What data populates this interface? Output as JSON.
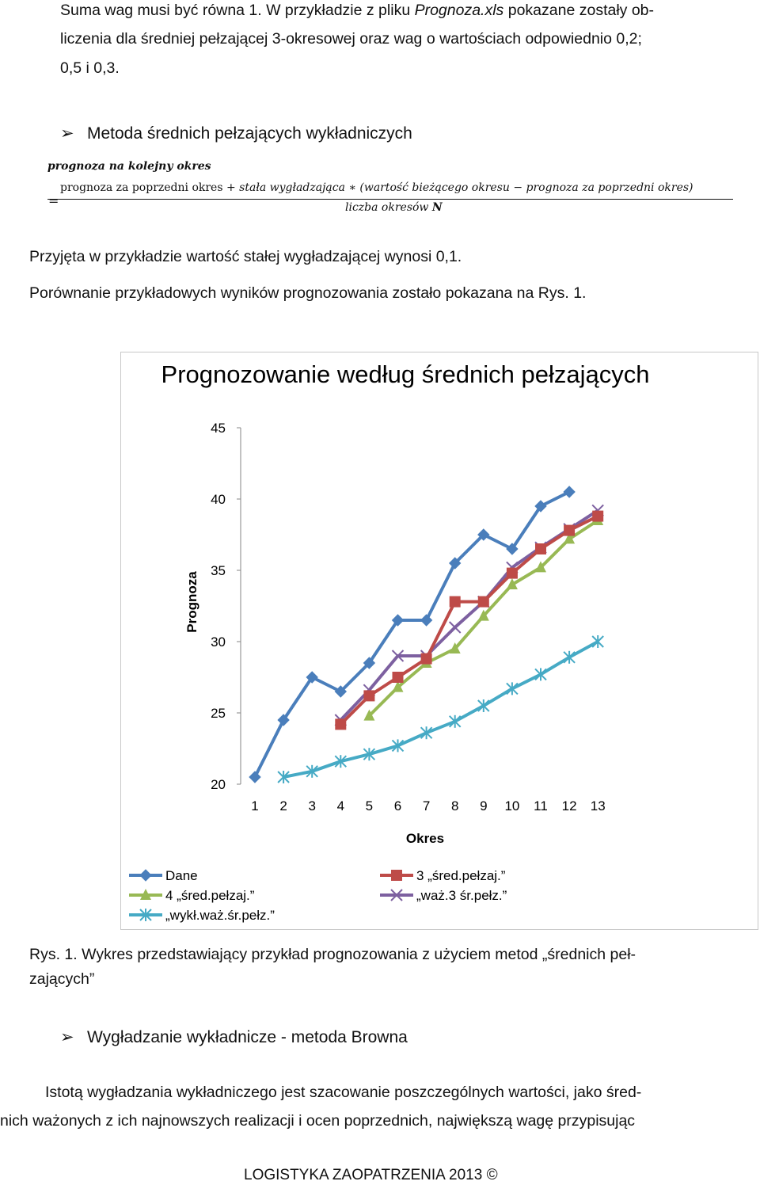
{
  "text": {
    "line1_a": "Suma wag musi być równa 1. W przykładzie z pliku ",
    "line1_file": "Prognoza.xls",
    "line1_b": " pokazane zostały ob-",
    "line2": "liczenia dla średniej pełzającej 3-okresowej oraz wag o wartościach odpowiednio 0,2;",
    "line3": "0,5 i 0,3.",
    "bullet1": "Metoda średnich pełzających wykładniczych",
    "formula_lhs": "prognoza na kolejny okres",
    "formula_eq": "=",
    "formula_num_a": "prognoza za poprzedni okres",
    "formula_num_b": "+ stała wygładzająca ∗ (wartość bieżącego okresu − prognoza za poprzedni okres)",
    "formula_den_a": "liczba okresów ",
    "formula_den_b": "N",
    "para1": "Przyjęta w przykładzie wartość stałej wygładzającej wynosi 0,1.",
    "para2": "Porównanie przykładowych wyników prognozowania zostało pokazana na Rys. 1.",
    "caption_l1": "Rys. 1. Wykres przedstawiający przykład prognozowania z użyciem metod „średnich peł-",
    "caption_l2": "zających”",
    "bullet2": "Wygładzanie wykładnicze - metoda Browna",
    "para3_l1": "Istotą wygładzania wykładniczego jest szacowanie poszczególnych wartości, jako śred-",
    "para3_l2": "nich ważonych z ich najnowszych realizacji i ocen poprzednich, największą wagę przypisując",
    "footer": "LOGISTYKA ZAOPATRZENIA 2013 ©",
    "arrow_icon": "➢"
  },
  "chart_data": {
    "type": "line",
    "title": "Prognozowanie według średnich pełzających",
    "xlabel": "Okres",
    "ylabel": "Prognoza",
    "categories": [
      "1",
      "2",
      "3",
      "4",
      "5",
      "6",
      "7",
      "8",
      "9",
      "10",
      "11",
      "12",
      "13"
    ],
    "ylim": [
      20,
      45
    ],
    "yticks": [
      20,
      25,
      30,
      35,
      40,
      45
    ],
    "grid": false,
    "legend_position": "bottom",
    "series": [
      {
        "name": "Dane",
        "color": "#4a7ebb",
        "marker": "diamond",
        "values": [
          20.5,
          24.5,
          27.5,
          26.5,
          28.5,
          31.5,
          31.5,
          35.5,
          37.5,
          36.5,
          39.5,
          40.5,
          null
        ]
      },
      {
        "name": "3 „śred.pełzaj.”",
        "color": "#be4b48",
        "marker": "square",
        "values": [
          null,
          null,
          null,
          24.2,
          26.2,
          27.5,
          28.8,
          32.8,
          32.8,
          34.8,
          36.5,
          37.8,
          38.8
        ]
      },
      {
        "name": "4 „śred.pełzaj.”",
        "color": "#98b954",
        "marker": "triangle",
        "values": [
          null,
          null,
          null,
          null,
          24.8,
          26.8,
          28.5,
          29.5,
          31.8,
          34.0,
          35.2,
          37.2,
          38.5
        ]
      },
      {
        "name": "„waż.3 śr.pełz.”",
        "color": "#7d60a0",
        "marker": "x",
        "values": [
          null,
          null,
          null,
          24.5,
          26.6,
          29.0,
          29.0,
          31.0,
          32.8,
          35.2,
          36.6,
          37.9,
          39.2
        ]
      },
      {
        "name": "„wykł.waż.śr.pełz.”",
        "color": "#46aac5",
        "marker": "star",
        "values": [
          null,
          20.5,
          20.9,
          21.6,
          22.1,
          22.7,
          23.6,
          24.4,
          25.5,
          26.7,
          27.7,
          28.9,
          30.0
        ]
      }
    ]
  }
}
